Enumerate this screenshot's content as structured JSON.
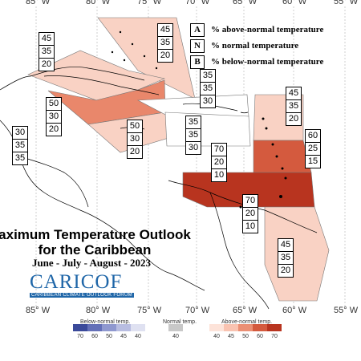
{
  "longitude_labels": [
    "85° W",
    "80° W",
    "75° W",
    "70° W",
    "65° W",
    "60° W",
    "55° W"
  ],
  "legend": [
    {
      "key": "A",
      "text": "% above-normal temperature"
    },
    {
      "key": "N",
      "text": "% normal temperature"
    },
    {
      "key": "B",
      "text": "% below-normal temperature"
    }
  ],
  "title_line1": "aximum Temperature Outlook",
  "title_line2": "for the Caribbean",
  "subtitle": "June - July - August - 2023",
  "logo_main": "CARICOF",
  "logo_sub": "CARIBBEAN CLIMATE OUTLOOK FORUM",
  "zones": [
    {
      "name": "bahamas",
      "values": [
        "45",
        "35",
        "20"
      ],
      "color": "#f9d2c4"
    },
    {
      "name": "cuba-west",
      "values": [
        "45",
        "35",
        "20"
      ],
      "color": "#f9d2c4"
    },
    {
      "name": "cayman",
      "values": [
        "50",
        "30",
        "20"
      ],
      "color": "#e9876b"
    },
    {
      "name": "jamaica",
      "values": [
        "50",
        "30",
        "20"
      ],
      "color": "#f9d2c4"
    },
    {
      "name": "hispaniola",
      "values": [
        "35",
        "35",
        "30"
      ],
      "color": "#ffffff"
    },
    {
      "name": "central-caribbean",
      "values": [
        "35",
        "35",
        "30"
      ],
      "color": "#ffffff"
    },
    {
      "name": "lesser-antilles-north",
      "values": [
        "45",
        "35",
        "20"
      ],
      "color": "#f9d2c4"
    },
    {
      "name": "central-america",
      "values": [
        "30",
        "35",
        "35"
      ],
      "color": "#ffffff"
    },
    {
      "name": "windward-islands",
      "values": [
        "60",
        "25",
        "15"
      ],
      "color": "#d45a3e"
    },
    {
      "name": "puerto-rico",
      "values": [
        "70",
        "20",
        "10"
      ],
      "color": "#b8341f"
    },
    {
      "name": "trinidad-venezuela",
      "values": [
        "70",
        "20",
        "10"
      ],
      "color": "#b8341f"
    },
    {
      "name": "guianas",
      "values": [
        "45",
        "35",
        "20"
      ],
      "color": "#f9d2c4"
    }
  ],
  "scale": {
    "below_label": "Below-normal temp.",
    "normal_label": "Normal temp.",
    "above_label": "Above-normal temp.",
    "below_ticks": [
      "70",
      "60",
      "50",
      "45",
      "40"
    ],
    "normal_tick": "40",
    "above_ticks": [
      "40",
      "45",
      "50",
      "60",
      "70"
    ],
    "below_colors": [
      "#3b4a9a",
      "#6470b8",
      "#8f98cf",
      "#b8bde1",
      "#dfe1f1"
    ],
    "normal_color": "#c8c8c8",
    "above_colors": [
      "#fde3d9",
      "#f9c3b1",
      "#eb8f74",
      "#d45a3e",
      "#b8341f"
    ]
  }
}
